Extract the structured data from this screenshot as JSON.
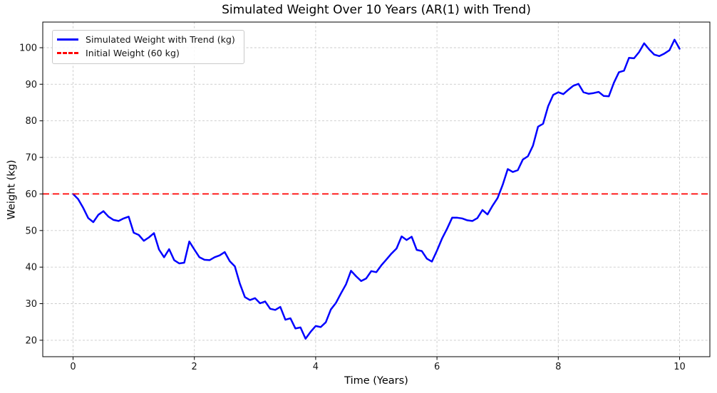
{
  "figure": {
    "title": "Simulated Weight Over 10 Years (AR(1) with Trend)",
    "xlabel": "Time (Years)",
    "ylabel": "Weight (kg)"
  },
  "legend": {
    "position": "upper left",
    "items": [
      {
        "label": "Simulated Weight with Trend (kg)",
        "color": "#0000ff",
        "style": "solid"
      },
      {
        "label": "Initial Weight (60 kg)",
        "color": "#ff0000",
        "style": "dashed"
      }
    ]
  },
  "chart_data": {
    "type": "line",
    "title": "Simulated Weight Over 10 Years (AR(1) with Trend)",
    "xlabel": "Time (Years)",
    "ylabel": "Weight (kg)",
    "xlim": [
      -0.5,
      10.5
    ],
    "ylim": [
      15.5,
      107
    ],
    "xticks": [
      0,
      2,
      4,
      6,
      8,
      10
    ],
    "yticks": [
      20,
      30,
      40,
      50,
      60,
      70,
      80,
      90,
      100
    ],
    "grid": true,
    "background": "#ffffff",
    "series": [
      {
        "name": "Simulated Weight with Trend (kg)",
        "type": "line",
        "color": "#0000ff",
        "linewidth": 2.5,
        "x_start": 0,
        "x_step": 0.0833333,
        "x_unit": "years",
        "n_points": 121,
        "values": [
          60.0,
          58.6,
          56.2,
          53.4,
          52.3,
          54.3,
          55.3,
          53.8,
          52.9,
          52.6,
          53.3,
          53.8,
          49.4,
          48.8,
          47.2,
          48.1,
          49.3,
          44.8,
          42.7,
          44.9,
          41.9,
          41.0,
          41.2,
          47.0,
          44.8,
          42.7,
          42.0,
          41.9,
          42.7,
          43.2,
          44.1,
          41.6,
          40.2,
          35.5,
          31.8,
          31.0,
          31.5,
          30.1,
          30.6,
          28.6,
          28.3,
          29.1,
          25.6,
          26.0,
          23.2,
          23.5,
          20.4,
          22.3,
          23.9,
          23.6,
          24.9,
          28.4,
          30.2,
          32.8,
          35.3,
          39.0,
          37.5,
          36.2,
          36.9,
          38.9,
          38.6,
          40.5,
          42.1,
          43.7,
          45.1,
          48.4,
          47.4,
          48.3,
          44.7,
          44.4,
          42.3,
          41.5,
          44.5,
          47.8,
          50.5,
          53.5,
          53.5,
          53.3,
          52.8,
          52.6,
          53.4,
          55.6,
          54.4,
          56.8,
          58.9,
          62.5,
          66.8,
          66.0,
          66.5,
          69.4,
          70.3,
          73.2,
          78.4,
          79.2,
          84.0,
          87.1,
          87.8,
          87.3,
          88.5,
          89.6,
          90.1,
          87.8,
          87.4,
          87.6,
          87.9,
          86.8,
          86.7,
          90.4,
          93.3,
          93.7,
          97.2,
          97.1,
          98.8,
          101.2,
          99.5,
          98.1,
          97.7,
          98.4,
          99.3,
          102.2,
          99.7
        ]
      },
      {
        "name": "Initial Weight (60 kg)",
        "type": "hline",
        "color": "#ff0000",
        "linestyle": "dashed",
        "linewidth": 1.8,
        "y": 60
      }
    ]
  }
}
